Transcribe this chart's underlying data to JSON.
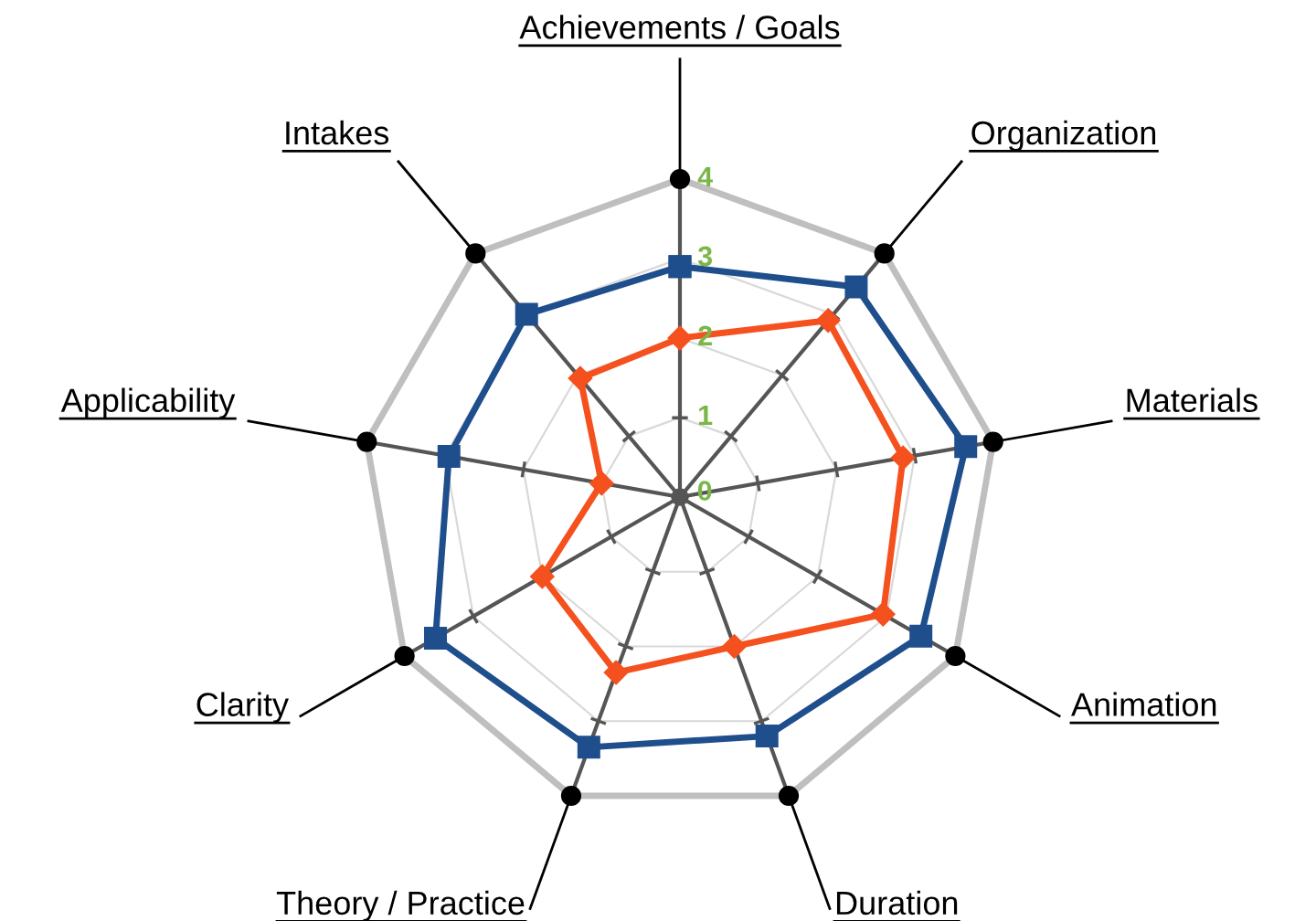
{
  "chart_data": {
    "type": "radar",
    "categories": [
      "Achievements / Goals",
      "Organization",
      "Materials",
      "Animation",
      "Duration",
      "Theory / Practice",
      "Clarity",
      "Applicability",
      "Intakes"
    ],
    "ylim": [
      0,
      4
    ],
    "yticks": [
      0,
      1,
      2,
      3,
      4
    ],
    "grid": true,
    "series": [
      {
        "color": "#1f4e8c",
        "marker": "square",
        "values": [
          2.9,
          3.45,
          3.65,
          3.5,
          3.2,
          3.35,
          3.55,
          2.95,
          3.0
        ]
      },
      {
        "color": "#f4511e",
        "marker": "diamond",
        "values": [
          2.0,
          2.9,
          2.85,
          2.95,
          2.0,
          2.35,
          2.0,
          1.0,
          1.95
        ]
      }
    ]
  }
}
